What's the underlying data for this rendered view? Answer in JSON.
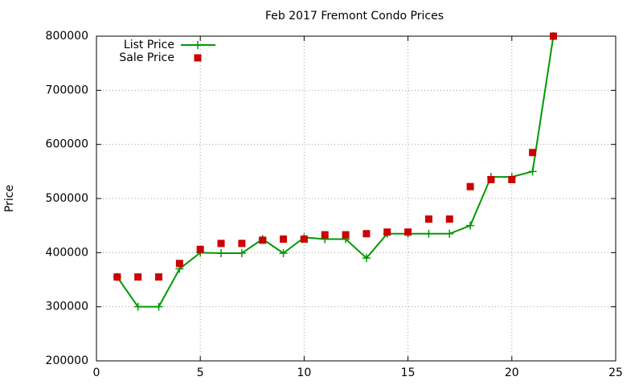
{
  "chart_data": {
    "type": "line",
    "title": "Feb 2017 Fremont Condo Prices",
    "y_label": "Price",
    "x": [
      1,
      2,
      3,
      4,
      5,
      6,
      7,
      8,
      9,
      10,
      11,
      12,
      13,
      14,
      15,
      16,
      17,
      18,
      19,
      20,
      21,
      22
    ],
    "series": [
      {
        "name": "List Price",
        "color": "#009900",
        "line": true,
        "marker": "plus",
        "values": [
          355000,
          300000,
          300000,
          370000,
          400000,
          399000,
          399000,
          425000,
          399000,
          428000,
          425000,
          425000,
          390000,
          435000,
          435000,
          435000,
          435000,
          450000,
          540000,
          540000,
          550000,
          800000
        ]
      },
      {
        "name": "Sale Price",
        "color": "#cc0000",
        "line": false,
        "marker": "square",
        "values": [
          355000,
          355000,
          355000,
          380000,
          406000,
          417000,
          417000,
          423000,
          425000,
          425000,
          433000,
          433000,
          435000,
          438000,
          438000,
          462000,
          462000,
          522000,
          535000,
          535000,
          585000,
          800000
        ]
      }
    ],
    "xlim": [
      0,
      25
    ],
    "xticks": [
      0,
      5,
      10,
      15,
      20,
      25
    ],
    "ylim": [
      200000,
      800000
    ],
    "yticks": [
      200000,
      300000,
      400000,
      500000,
      600000,
      700000,
      800000
    ],
    "grid": true,
    "legend": "top-left"
  }
}
